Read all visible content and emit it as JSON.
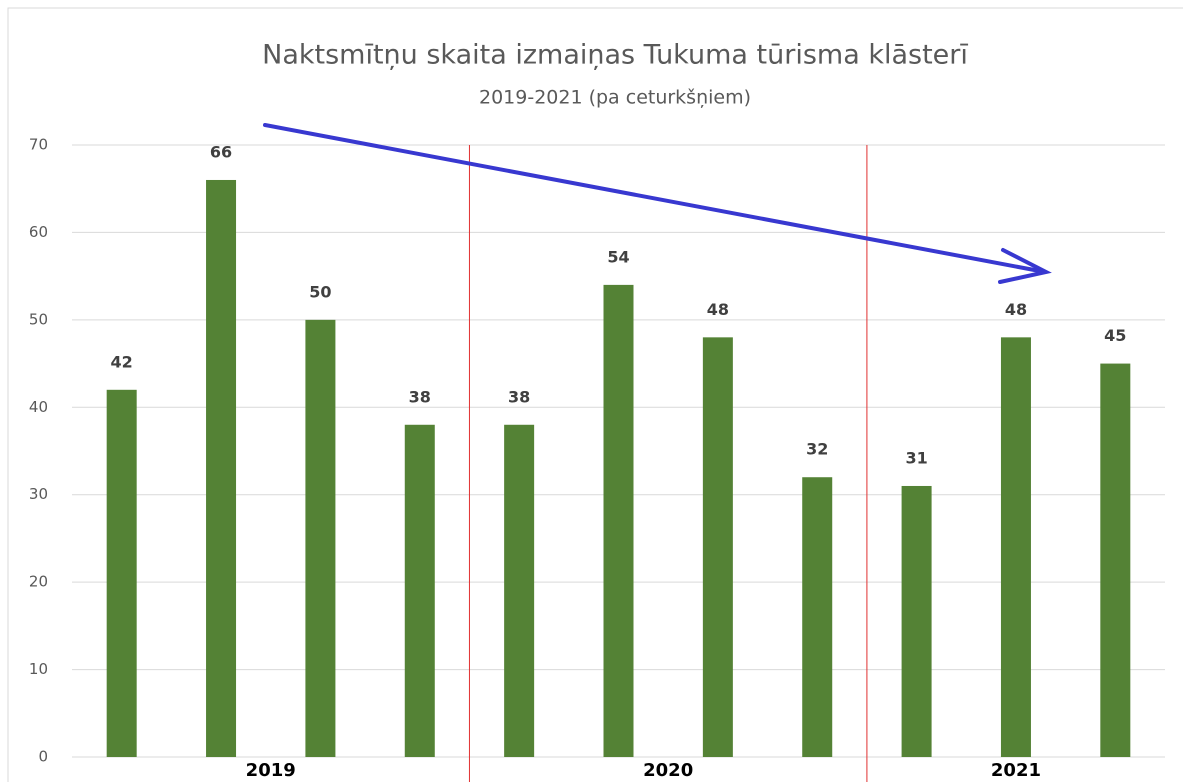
{
  "chart_data": {
    "type": "bar",
    "title": "Naktsmītņu skaita izmaiņas Tukuma tūrisma klāsterī",
    "subtitle": "2019-2021 (pa ceturkšņiem)",
    "groups": [
      {
        "name": "2019",
        "values": [
          42,
          66,
          50,
          38
        ]
      },
      {
        "name": "2020",
        "values": [
          38,
          54,
          48,
          32
        ]
      },
      {
        "name": "2021",
        "values": [
          31,
          48,
          45
        ]
      }
    ],
    "color": "#548235",
    "ylim": [
      0,
      70
    ],
    "yticks": [
      0,
      10,
      20,
      30,
      40,
      50,
      60,
      70
    ],
    "grid": true
  }
}
